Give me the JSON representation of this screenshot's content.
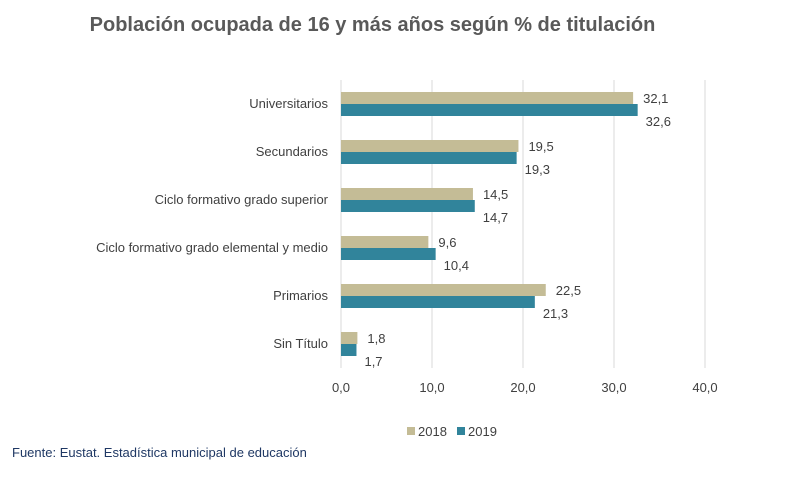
{
  "chart_data": {
    "type": "bar",
    "orientation": "horizontal",
    "title": "Población ocupada de 16 y más años según % de titulación",
    "categories": [
      "Universitarios",
      "Secundarios",
      "Ciclo formativo grado superior",
      "Ciclo formativo grado elemental y medio",
      "Primarios",
      "Sin Título"
    ],
    "series": [
      {
        "name": "2018",
        "color": "#c4bc96",
        "values": [
          32.1,
          19.5,
          14.5,
          9.6,
          22.5,
          1.8
        ],
        "labels": [
          "32,1",
          "19,5",
          "14,5",
          "9,6",
          "22,5",
          "1,8"
        ]
      },
      {
        "name": "2019",
        "color": "#31849b",
        "values": [
          32.6,
          19.3,
          14.7,
          10.4,
          21.3,
          1.7
        ],
        "labels": [
          "32,6",
          "19,3",
          "14,7",
          "10,4",
          "21,3",
          "1,7"
        ]
      }
    ],
    "xlim": [
      0,
      40
    ],
    "xticks": [
      0,
      10,
      20,
      30,
      40
    ],
    "xtick_labels": [
      "0,0",
      "10,0",
      "20,0",
      "30,0",
      "40,0"
    ],
    "grid": "vertical",
    "legend": "bottom"
  },
  "source": "Fuente: Eustat. Estadística municipal de educación"
}
